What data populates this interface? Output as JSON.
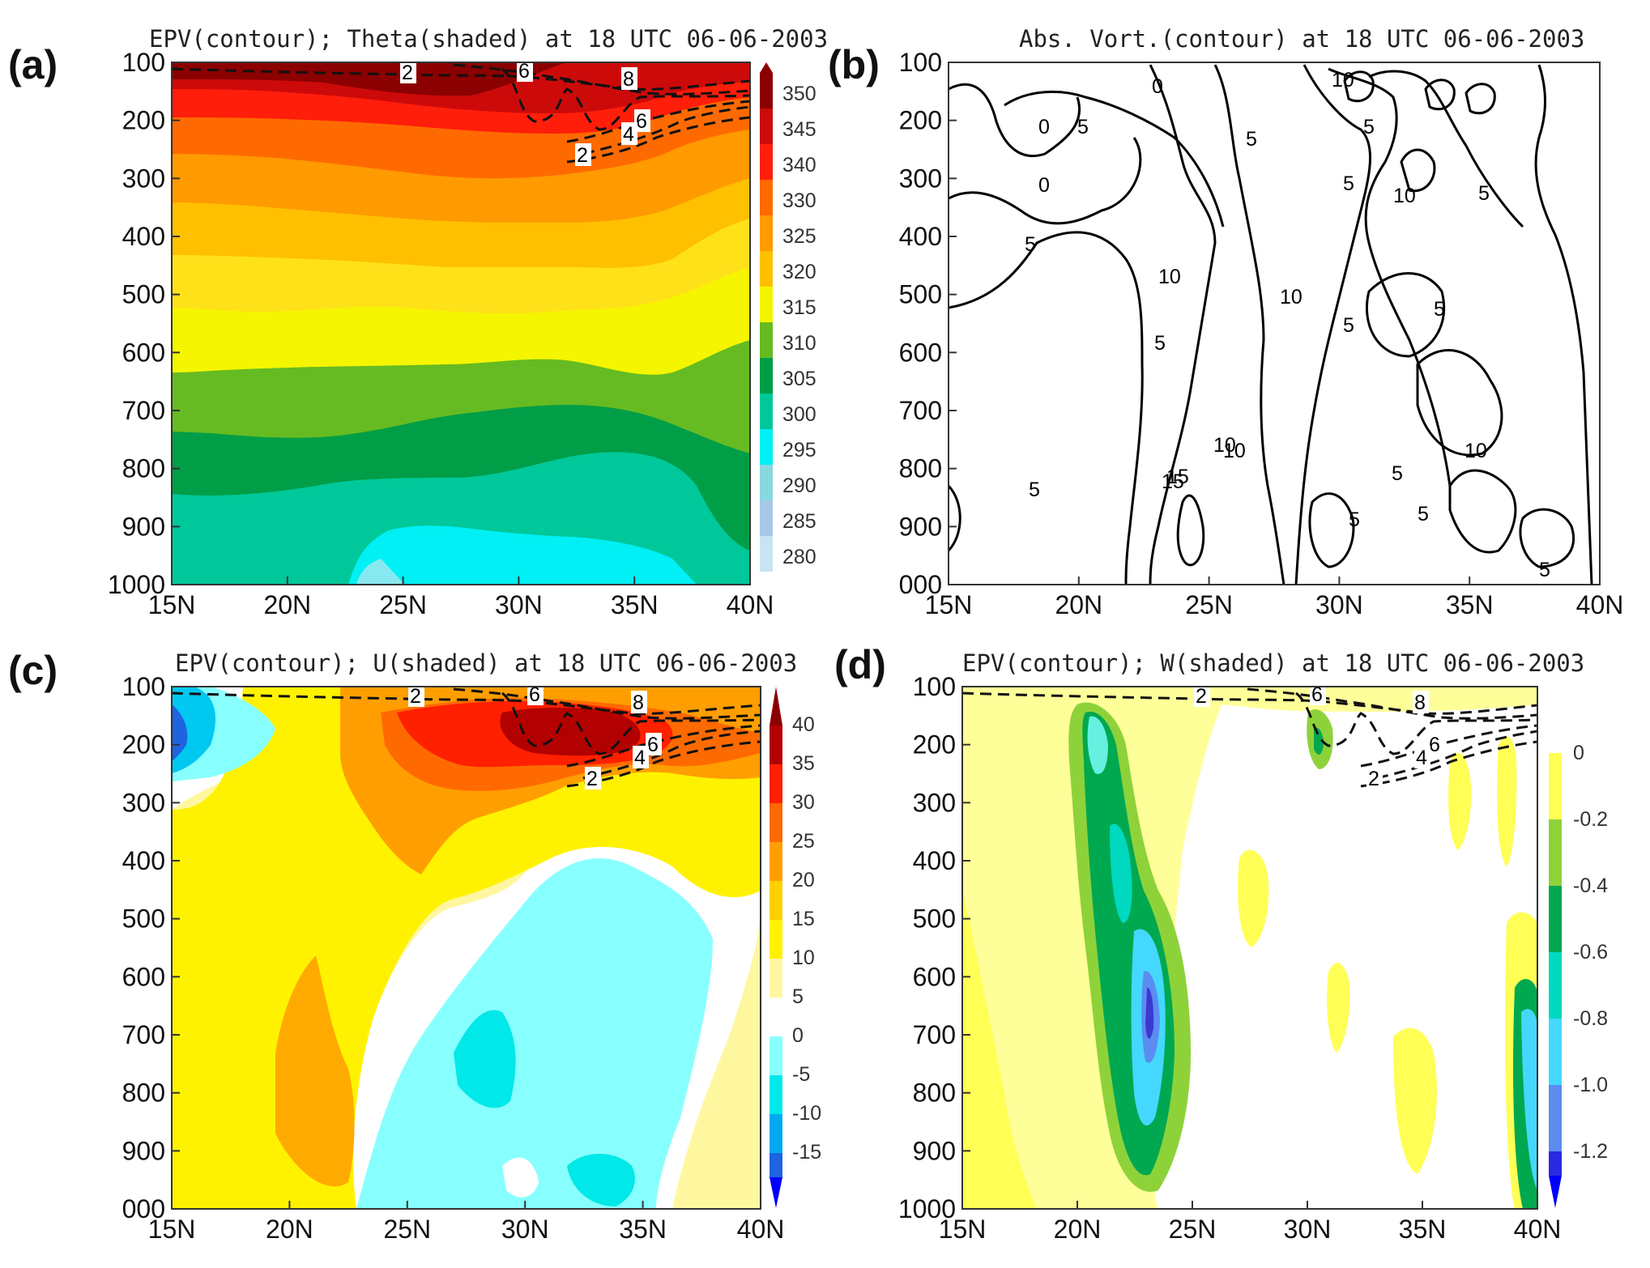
{
  "chart_data": [
    {
      "panel": "(a)",
      "type": "heatmap",
      "title": "EPV(contour); Theta(shaded) at 18 UTC 06-06-2003",
      "x_ticks": [
        "15N",
        "20N",
        "25N",
        "30N",
        "35N",
        "40N"
      ],
      "y_ticks": [
        "100",
        "200",
        "300",
        "400",
        "500",
        "600",
        "700",
        "800",
        "900",
        "1000"
      ],
      "colorbar_labels": [
        "350",
        "345",
        "340",
        "330",
        "325",
        "320",
        "315",
        "310",
        "305",
        "300",
        "295",
        "290",
        "285",
        "280"
      ],
      "contour_labels": [
        "2",
        "6",
        "8",
        "6",
        "4",
        "2"
      ],
      "ylim": [
        1000,
        100
      ],
      "xlim": [
        15,
        40
      ]
    },
    {
      "panel": "(b)",
      "type": "line",
      "title": "Abs. Vort.(contour) at 18 UTC 06-06-2003",
      "x_ticks": [
        "15N",
        "20N",
        "25N",
        "30N",
        "35N",
        "40N"
      ],
      "y_ticks": [
        "100",
        "200",
        "300",
        "400",
        "500",
        "600",
        "700",
        "800",
        "900",
        "000"
      ],
      "contour_labels": [
        "0",
        "0",
        "0",
        "5",
        "5",
        "10",
        "10",
        "15",
        "5",
        "5",
        "10",
        "5",
        "5",
        "10",
        "10",
        "5",
        "5",
        "5",
        "10",
        "5",
        "15",
        "10",
        "5",
        "5",
        "5",
        "5"
      ],
      "ylim": [
        1000,
        100
      ],
      "xlim": [
        15,
        40
      ]
    },
    {
      "panel": "(c)",
      "type": "heatmap",
      "title": "EPV(contour); U(shaded) at 18 UTC 06-06-2003",
      "x_ticks": [
        "15N",
        "20N",
        "25N",
        "30N",
        "35N",
        "40N"
      ],
      "y_ticks": [
        "100",
        "200",
        "300",
        "400",
        "500",
        "600",
        "700",
        "800",
        "900",
        "000"
      ],
      "colorbar_labels": [
        "40",
        "35",
        "30",
        "25",
        "20",
        "15",
        "10",
        "5",
        "0",
        "-5",
        "-10",
        "-15"
      ],
      "contour_labels": [
        "2",
        "6",
        "8",
        "6",
        "4",
        "2"
      ],
      "ylim": [
        1000,
        100
      ],
      "xlim": [
        15,
        40
      ]
    },
    {
      "panel": "(d)",
      "type": "heatmap",
      "title": "EPV(contour); W(shaded) at 18 UTC 06-06-2003",
      "x_ticks": [
        "15N",
        "20N",
        "25N",
        "30N",
        "35N",
        "40N"
      ],
      "y_ticks": [
        "100",
        "200",
        "300",
        "400",
        "500",
        "600",
        "700",
        "800",
        "900",
        "1000"
      ],
      "colorbar_labels": [
        "0",
        "-0.2",
        "-0.4",
        "-0.6",
        "-0.8",
        "-1.0",
        "-1.2"
      ],
      "contour_labels": [
        "2",
        "6",
        "8",
        "6",
        "4",
        "2"
      ],
      "ylim": [
        1000,
        100
      ],
      "xlim": [
        15,
        40
      ]
    }
  ]
}
